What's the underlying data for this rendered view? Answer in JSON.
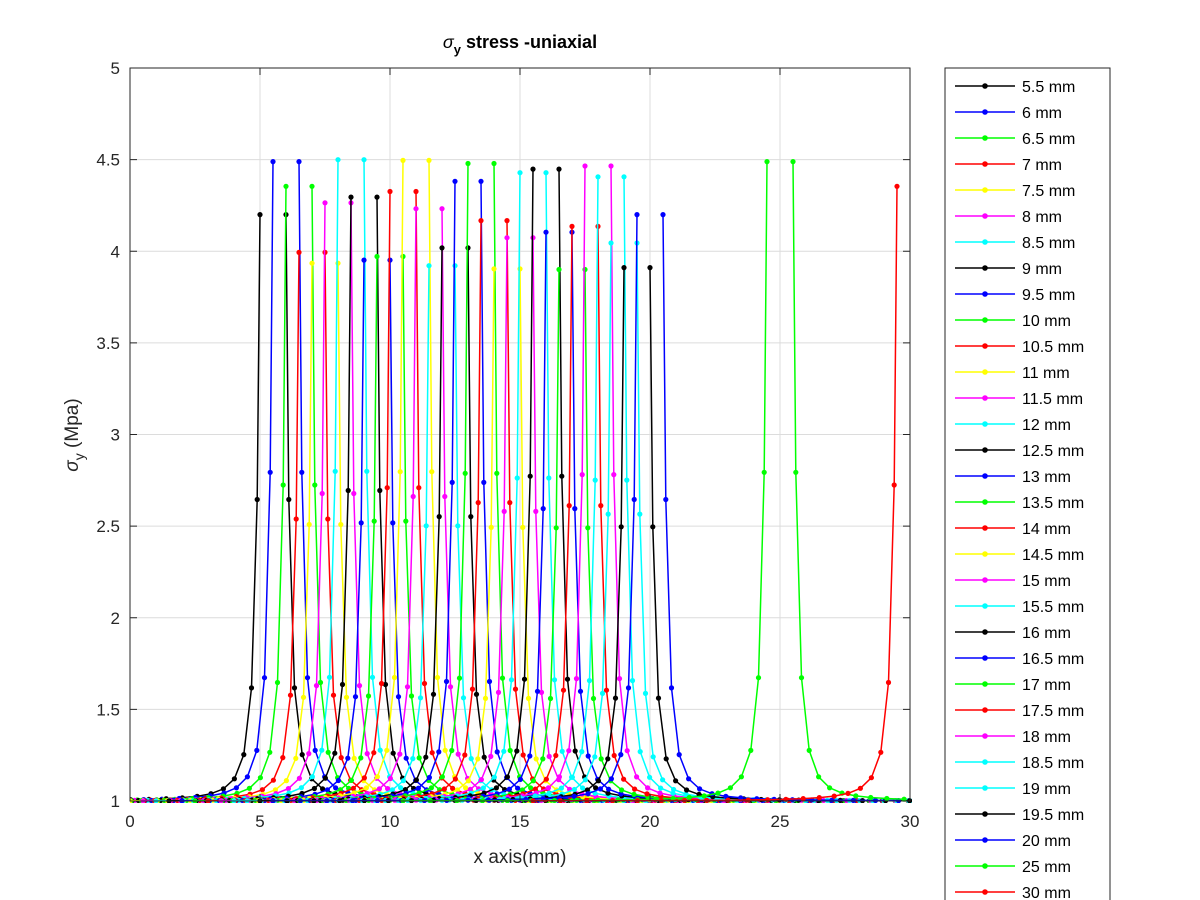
{
  "chart_data": {
    "type": "line",
    "title": {
      "sigma": "σ",
      "sub": "y",
      "rest": " stress -uniaxial"
    },
    "xlabel": "x axis(mm)",
    "ylabel": {
      "sigma": "σ",
      "sub": "y",
      "rest": " (Mpa)"
    },
    "xlim": [
      0,
      30
    ],
    "ylim": [
      1,
      5
    ],
    "xticks": [
      "0",
      "5",
      "10",
      "15",
      "20",
      "25",
      "30"
    ],
    "yticks": [
      "1",
      "1.5",
      "2",
      "2.5",
      "3",
      "3.5",
      "4",
      "4.5",
      "5"
    ],
    "grid": true,
    "legend_position": "outside-right",
    "series": [
      {
        "name": "5.5 mm",
        "color": "#000000",
        "center": 5.5
      },
      {
        "name": "6 mm",
        "color": "#0000ff",
        "center": 6
      },
      {
        "name": "6.5 mm",
        "color": "#00ff00",
        "center": 6.5
      },
      {
        "name": "7 mm",
        "color": "#ff0000",
        "center": 7
      },
      {
        "name": "7.5 mm",
        "color": "#ffff00",
        "center": 7.5
      },
      {
        "name": "8 mm",
        "color": "#ff00ff",
        "center": 8
      },
      {
        "name": "8.5 mm",
        "color": "#00ffff",
        "center": 8.5
      },
      {
        "name": "9 mm",
        "color": "#000000",
        "center": 9
      },
      {
        "name": "9.5 mm",
        "color": "#0000ff",
        "center": 9.5
      },
      {
        "name": "10 mm",
        "color": "#00ff00",
        "center": 10
      },
      {
        "name": "10.5 mm",
        "color": "#ff0000",
        "center": 10.5
      },
      {
        "name": "11 mm",
        "color": "#ffff00",
        "center": 11
      },
      {
        "name": "11.5 mm",
        "color": "#ff00ff",
        "center": 11.5
      },
      {
        "name": "12 mm",
        "color": "#00ffff",
        "center": 12
      },
      {
        "name": "12.5 mm",
        "color": "#000000",
        "center": 12.5
      },
      {
        "name": "13 mm",
        "color": "#0000ff",
        "center": 13
      },
      {
        "name": "13.5 mm",
        "color": "#00ff00",
        "center": 13.5
      },
      {
        "name": "14 mm",
        "color": "#ff0000",
        "center": 14
      },
      {
        "name": "14.5 mm",
        "color": "#ffff00",
        "center": 14.5
      },
      {
        "name": "15 mm",
        "color": "#ff00ff",
        "center": 15
      },
      {
        "name": "15.5 mm",
        "color": "#00ffff",
        "center": 15.5
      },
      {
        "name": "16 mm",
        "color": "#000000",
        "center": 16
      },
      {
        "name": "16.5 mm",
        "color": "#0000ff",
        "center": 16.5
      },
      {
        "name": "17 mm",
        "color": "#00ff00",
        "center": 17
      },
      {
        "name": "17.5 mm",
        "color": "#ff0000",
        "center": 17.5
      },
      {
        "name": "18 mm",
        "color": "#ff00ff",
        "center": 18
      },
      {
        "name": "18.5 mm",
        "color": "#00ffff",
        "center": 18.5
      },
      {
        "name": "19 mm",
        "color": "#00ffff",
        "center": 19
      },
      {
        "name": "19.5 mm",
        "color": "#000000",
        "center": 19.5
      },
      {
        "name": "20 mm",
        "color": "#0000ff",
        "center": 20
      },
      {
        "name": "25 mm",
        "color": "#00ff00",
        "center": 25
      },
      {
        "name": "30 mm",
        "color": "#ff0000",
        "center": 30
      }
    ]
  }
}
